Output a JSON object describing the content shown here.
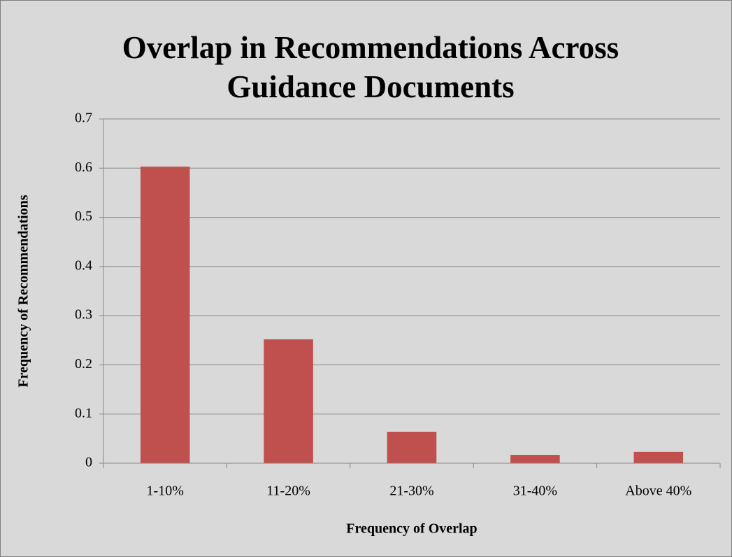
{
  "chart_data": {
    "type": "bar",
    "title": "Overlap in Recommendations Across Guidance Documents",
    "x_label": "Frequency of Overlap",
    "y_label": "Frequency of Recommendations",
    "categories": [
      "1-10%",
      "11-20%",
      "21-30%",
      "31-40%",
      "Above 40%"
    ],
    "values": [
      0.603,
      0.252,
      0.064,
      0.017,
      0.023
    ],
    "color": "#c0504d",
    "ylim": [
      0,
      0.7
    ],
    "yticks": [
      0,
      0.1,
      0.2,
      0.3,
      0.4,
      0.5,
      0.6,
      0.7
    ],
    "grid": true
  }
}
